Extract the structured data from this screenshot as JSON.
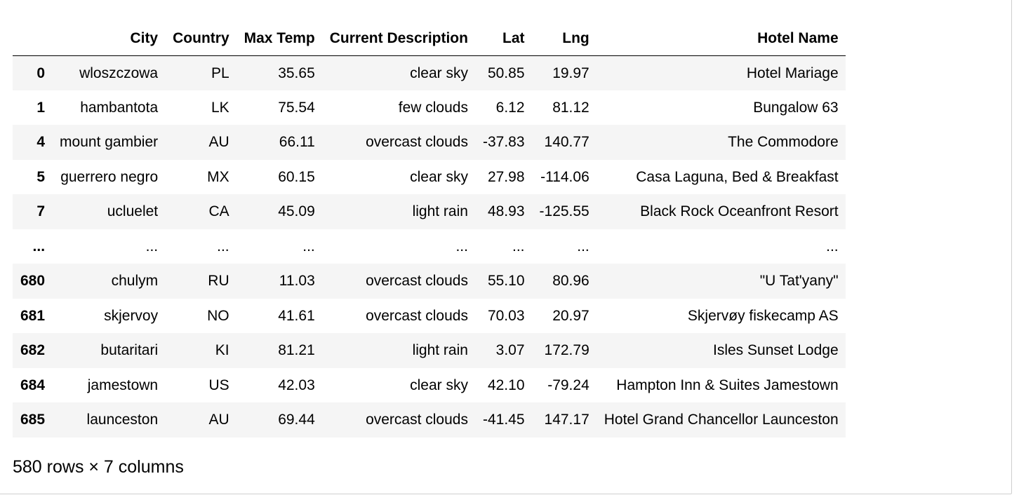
{
  "table": {
    "index_header": "",
    "columns": [
      "City",
      "Country",
      "Max Temp",
      "Current Description",
      "Lat",
      "Lng",
      "Hotel Name"
    ],
    "rows": [
      {
        "index": "0",
        "cells": [
          "wloszczowa",
          "PL",
          "35.65",
          "clear sky",
          "50.85",
          "19.97",
          "Hotel Mariage"
        ]
      },
      {
        "index": "1",
        "cells": [
          "hambantota",
          "LK",
          "75.54",
          "few clouds",
          "6.12",
          "81.12",
          "Bungalow 63"
        ]
      },
      {
        "index": "4",
        "cells": [
          "mount gambier",
          "AU",
          "66.11",
          "overcast clouds",
          "-37.83",
          "140.77",
          "The Commodore"
        ]
      },
      {
        "index": "5",
        "cells": [
          "guerrero negro",
          "MX",
          "60.15",
          "clear sky",
          "27.98",
          "-114.06",
          "Casa Laguna, Bed & Breakfast"
        ]
      },
      {
        "index": "7",
        "cells": [
          "ucluelet",
          "CA",
          "45.09",
          "light rain",
          "48.93",
          "-125.55",
          "Black Rock Oceanfront Resort"
        ]
      },
      {
        "index": "...",
        "cells": [
          "...",
          "...",
          "...",
          "...",
          "...",
          "...",
          "..."
        ]
      },
      {
        "index": "680",
        "cells": [
          "chulym",
          "RU",
          "11.03",
          "overcast clouds",
          "55.10",
          "80.96",
          "\"U Tat'yany\""
        ]
      },
      {
        "index": "681",
        "cells": [
          "skjervoy",
          "NO",
          "41.61",
          "overcast clouds",
          "70.03",
          "20.97",
          "Skjervøy fiskecamp AS"
        ]
      },
      {
        "index": "682",
        "cells": [
          "butaritari",
          "KI",
          "81.21",
          "light rain",
          "3.07",
          "172.79",
          "Isles Sunset Lodge"
        ]
      },
      {
        "index": "684",
        "cells": [
          "jamestown",
          "US",
          "42.03",
          "clear sky",
          "42.10",
          "-79.24",
          "Hampton Inn & Suites Jamestown"
        ]
      },
      {
        "index": "685",
        "cells": [
          "launceston",
          "AU",
          "69.44",
          "overcast clouds",
          "-41.45",
          "147.17",
          "Hotel Grand Chancellor Launceston"
        ]
      }
    ]
  },
  "summary": "580 rows × 7 columns"
}
